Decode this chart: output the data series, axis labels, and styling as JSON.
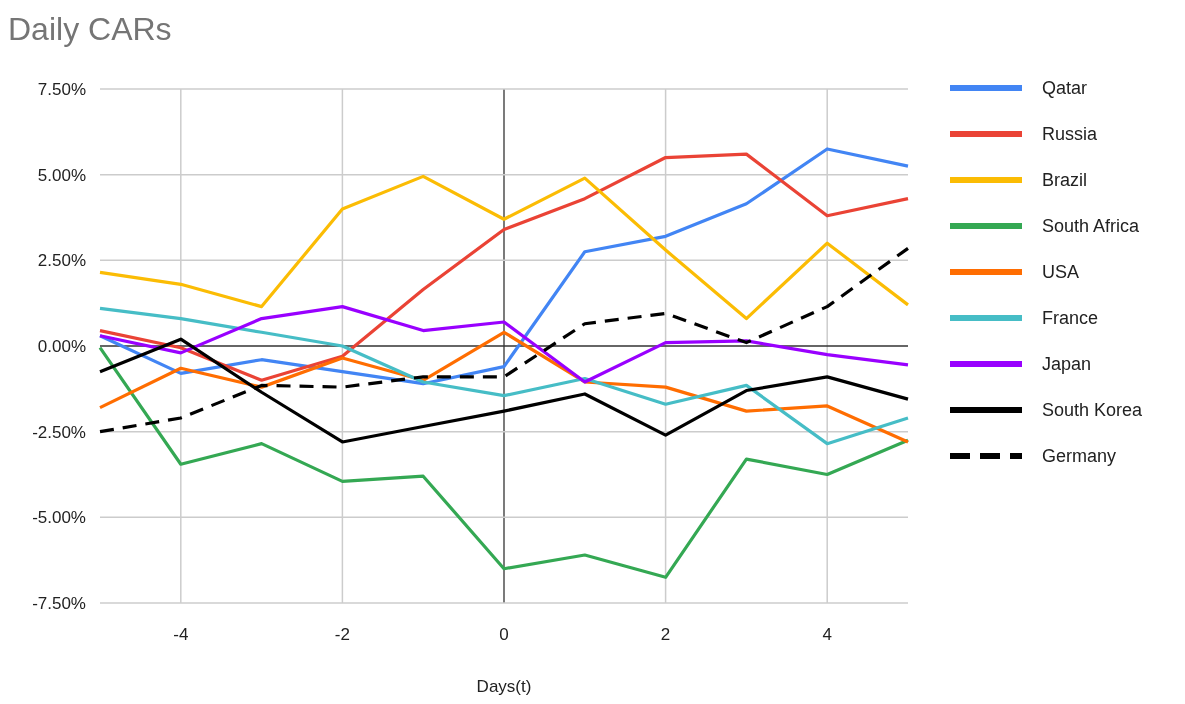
{
  "chart_data": {
    "type": "line",
    "title": "Daily CARs",
    "xlabel": "Days(t)",
    "x": [
      -5,
      -4,
      -3,
      -2,
      -1,
      0,
      1,
      2,
      3,
      4,
      5
    ],
    "xlim": [
      -5,
      5
    ],
    "xticks": [
      -4,
      -2,
      0,
      2,
      4
    ],
    "ylim": [
      -7.5,
      7.5
    ],
    "yticks": [
      {
        "value": -7.5,
        "label": "-7.50%"
      },
      {
        "value": -5,
        "label": "-5.00%"
      },
      {
        "value": -2.5,
        "label": "-2.50%"
      },
      {
        "value": 0,
        "label": "0.00%"
      },
      {
        "value": 2.5,
        "label": "2.50%"
      },
      {
        "value": 5,
        "label": "5.00%"
      },
      {
        "value": 7.5,
        "label": "7.50%"
      }
    ],
    "grid": true,
    "legend": "right",
    "marker": "none",
    "series": [
      {
        "name": "Qatar",
        "color": "#4285f4",
        "values": [
          0.3,
          -0.8,
          -0.4,
          -0.75,
          -1.1,
          -0.6,
          2.75,
          3.2,
          4.15,
          5.75,
          5.25
        ]
      },
      {
        "name": "Russia",
        "color": "#ea4335",
        "values": [
          0.45,
          -0.05,
          -1.0,
          -0.3,
          1.65,
          3.4,
          4.3,
          5.5,
          5.6,
          3.8,
          4.3
        ]
      },
      {
        "name": "Brazil",
        "color": "#fbbc04",
        "values": [
          2.15,
          1.8,
          1.15,
          4.0,
          4.95,
          3.7,
          4.9,
          2.8,
          0.8,
          3.0,
          1.2
        ]
      },
      {
        "name": "South Africa",
        "color": "#34a853",
        "values": [
          -0.05,
          -3.45,
          -2.85,
          -3.95,
          -3.8,
          -6.5,
          -6.1,
          -6.75,
          -3.3,
          -3.75,
          -2.75
        ]
      },
      {
        "name": "USA",
        "color": "#ff6d01",
        "values": [
          -1.8,
          -0.65,
          -1.2,
          -0.35,
          -1.0,
          0.4,
          -1.05,
          -1.2,
          -1.9,
          -1.75,
          -2.8
        ]
      },
      {
        "name": "France",
        "color": "#46bdc6",
        "values": [
          1.1,
          0.8,
          0.4,
          0.0,
          -1.05,
          -1.45,
          -0.95,
          -1.7,
          -1.15,
          -2.85,
          -2.1
        ]
      },
      {
        "name": "Japan",
        "color": "#9900ff",
        "values": [
          0.3,
          -0.2,
          0.8,
          1.15,
          0.45,
          0.7,
          -1.05,
          0.1,
          0.15,
          -0.25,
          -0.55
        ]
      },
      {
        "name": "South Korea",
        "color": "#000000",
        "values": [
          -0.75,
          0.2,
          -1.35,
          -2.8,
          -2.35,
          -1.9,
          -1.4,
          -2.6,
          -1.3,
          -0.9,
          -1.55
        ]
      },
      {
        "name": "Germany",
        "color": "#000000",
        "line_style": "dashed",
        "values": [
          -2.5,
          -2.1,
          -1.15,
          -1.2,
          -0.9,
          -0.9,
          0.65,
          0.95,
          0.1,
          1.15,
          2.85
        ]
      }
    ]
  }
}
